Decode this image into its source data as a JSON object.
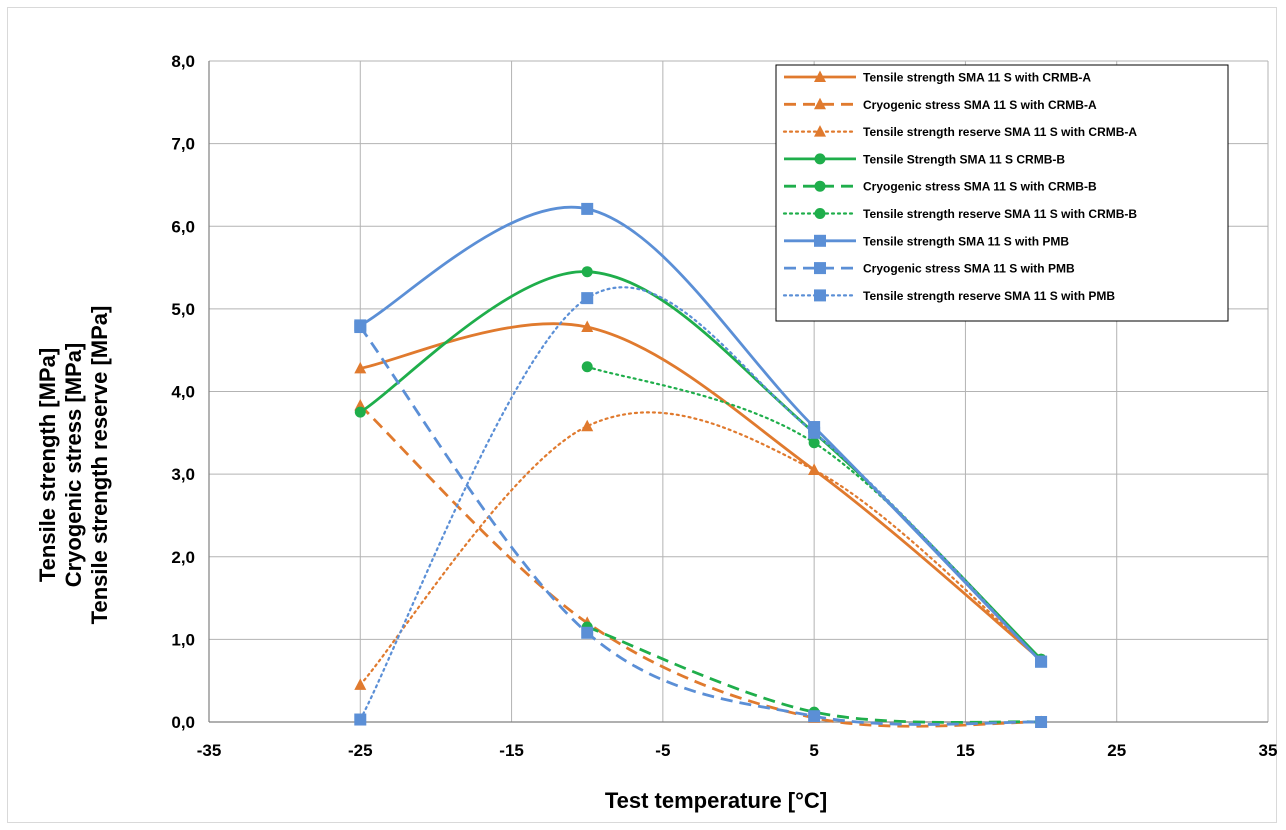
{
  "chart_data": {
    "type": "line",
    "xlabel": "Test temperature [°C]",
    "ylabel_lines": [
      "Tensile strength [MPa]",
      "Cryogenic stress [MPa]",
      "Tensile strength reserve [MPa]"
    ],
    "xlim": [
      -35,
      35
    ],
    "ylim": [
      0,
      8
    ],
    "xticks": [
      -35,
      -25,
      -15,
      -5,
      5,
      15,
      25,
      35
    ],
    "yticks": [
      0,
      1,
      2,
      3,
      4,
      5,
      6,
      7,
      8
    ],
    "xtick_labels": [
      "-35",
      "-25",
      "-15",
      "-5",
      "5",
      "15",
      "25",
      "35"
    ],
    "ytick_labels": [
      "0,0",
      "1,0",
      "2,0",
      "3,0",
      "4,0",
      "5,0",
      "6,0",
      "7,0",
      "8,0"
    ],
    "grid": true,
    "legend_position": "top-right",
    "series": [
      {
        "name": "Tensile strength SMA 11 S with CRMB-A",
        "color": "#e07a2e",
        "dash": "solid",
        "marker": "triangle",
        "points": [
          [
            -25,
            4.28
          ],
          [
            -10,
            4.78
          ],
          [
            5,
            3.05
          ],
          [
            20,
            0.75
          ]
        ]
      },
      {
        "name": "Cryogenic stress SMA 11 S with CRMB-A",
        "color": "#e07a2e",
        "dash": "dashed",
        "marker": "triangle",
        "points": [
          [
            -25,
            3.83
          ],
          [
            -10,
            1.2
          ],
          [
            5,
            0.05
          ],
          [
            20,
            0.0
          ]
        ]
      },
      {
        "name": "Tensile strength reserve SMA 11 S with CRMB-A",
        "color": "#e07a2e",
        "dash": "dotted",
        "marker": "triangle",
        "points": [
          [
            -25,
            0.45
          ],
          [
            -10,
            3.58
          ],
          [
            5,
            3.05
          ],
          [
            20,
            0.75
          ]
        ]
      },
      {
        "name": "Tensile Strength SMA 11 S  CRMB-B",
        "color": "#1fae4b",
        "dash": "solid",
        "marker": "circle",
        "points": [
          [
            -25,
            3.75
          ],
          [
            -10,
            5.45
          ],
          [
            5,
            3.5
          ],
          [
            20,
            0.76
          ]
        ]
      },
      {
        "name": "Cryogenic stress SMA 11 S with CRMB-B",
        "color": "#1fae4b",
        "dash": "dashed",
        "marker": "circle",
        "points": [
          [
            -10,
            1.15
          ],
          [
            5,
            0.12
          ],
          [
            20,
            0.0
          ]
        ]
      },
      {
        "name": "Tensile strength reserve SMA 11 S with CRMB-B",
        "color": "#1fae4b",
        "dash": "dotted",
        "marker": "circle",
        "points": [
          [
            -10,
            4.3
          ],
          [
            5,
            3.38
          ],
          [
            20,
            0.76
          ]
        ]
      },
      {
        "name": "Tensile strength SMA 11 S with PMB",
        "color": "#5b8fd6",
        "dash": "solid",
        "marker": "square",
        "points": [
          [
            -25,
            4.8
          ],
          [
            -10,
            6.21
          ],
          [
            5,
            3.57
          ],
          [
            20,
            0.73
          ]
        ]
      },
      {
        "name": "Cryogenic stress SMA 11 S with PMB",
        "color": "#5b8fd6",
        "dash": "dashed",
        "marker": "square",
        "points": [
          [
            -25,
            4.78
          ],
          [
            -10,
            1.08
          ],
          [
            5,
            0.07
          ],
          [
            20,
            0.0
          ]
        ]
      },
      {
        "name": "Tensile strength reserve SMA 11 S with PMB",
        "color": "#5b8fd6",
        "dash": "dotted",
        "marker": "square",
        "points": [
          [
            -25,
            0.03
          ],
          [
            -10,
            5.13
          ],
          [
            5,
            3.5
          ],
          [
            20,
            0.73
          ]
        ]
      }
    ]
  }
}
